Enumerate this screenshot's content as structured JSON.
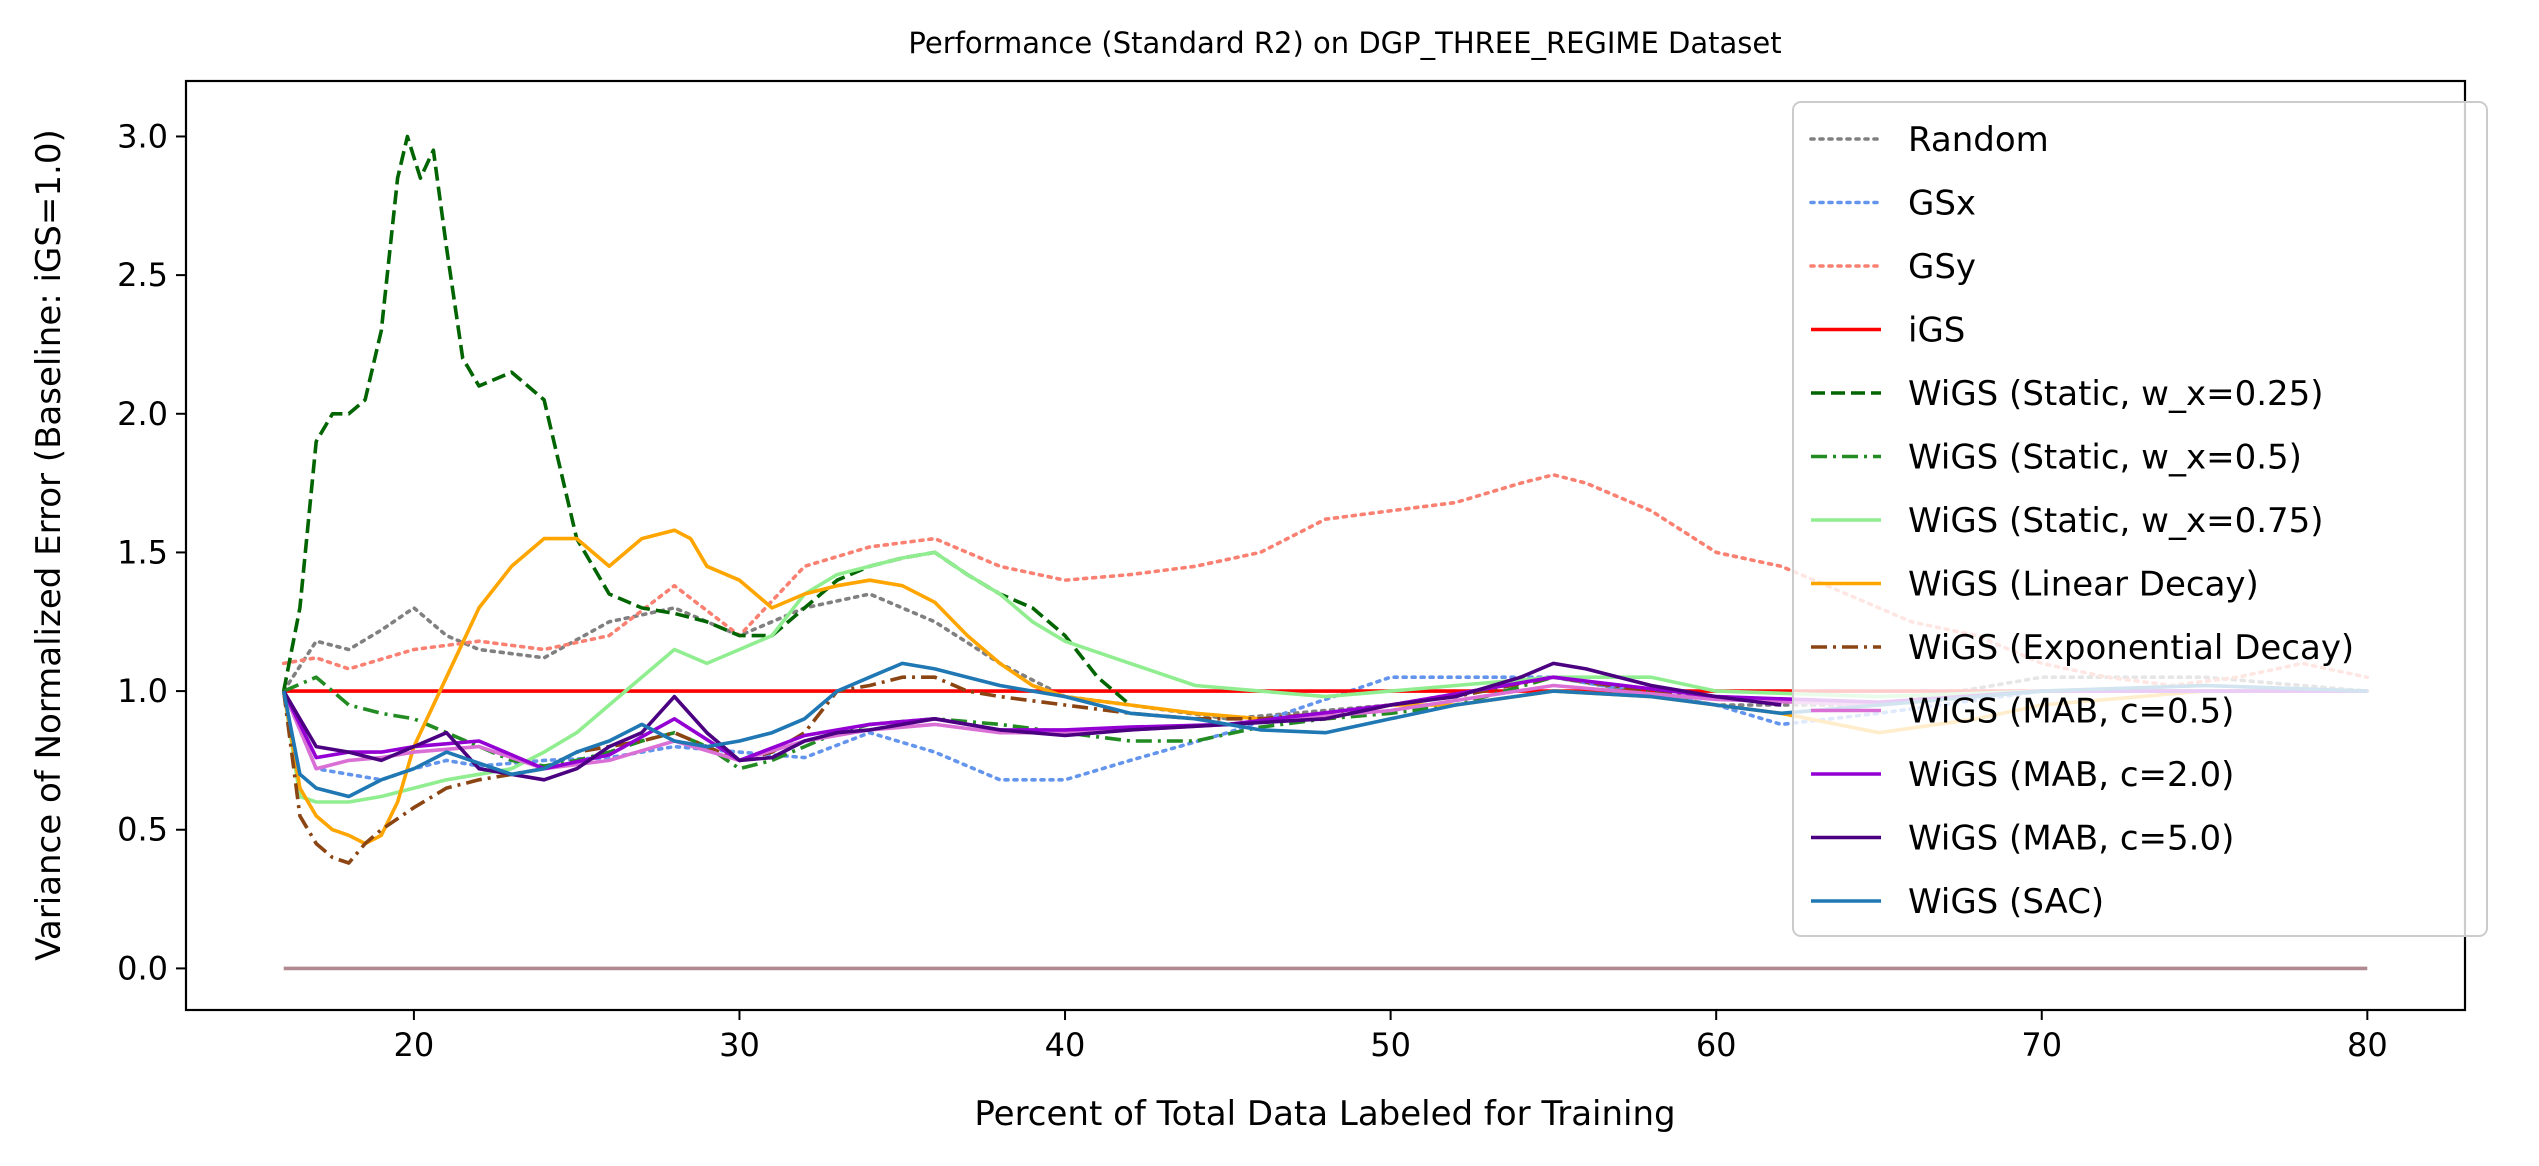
{
  "chart_data": {
    "type": "line",
    "title": "Performance (Standard R2) on DGP_THREE_REGIME Dataset",
    "xlabel": "Percent of Total Data Labeled for Training",
    "ylabel": "Variance of Normalized Error (Baseline: iGS=1.0)",
    "xlim": [
      13,
      83
    ],
    "ylim": [
      -0.15,
      3.2
    ],
    "xticks": [
      20,
      30,
      40,
      50,
      60,
      70,
      80
    ],
    "yticks": [
      0.0,
      0.5,
      1.0,
      1.5,
      2.0,
      2.5,
      3.0
    ],
    "grid": false,
    "legend_position": "top-right",
    "series": [
      {
        "name": "Random",
        "color": "#808080",
        "dash": "dotted",
        "x": [
          16,
          17,
          18,
          19,
          20,
          21,
          22,
          24,
          26,
          28,
          30,
          32,
          34,
          36,
          38,
          40,
          42,
          45,
          50,
          55,
          60,
          65,
          70,
          75,
          80
        ],
        "y": [
          1.0,
          1.18,
          1.15,
          1.22,
          1.3,
          1.2,
          1.15,
          1.12,
          1.25,
          1.3,
          1.2,
          1.3,
          1.35,
          1.25,
          1.1,
          0.98,
          0.95,
          0.9,
          0.95,
          1.05,
          0.95,
          0.95,
          1.05,
          1.05,
          1.0
        ]
      },
      {
        "name": "GSx",
        "color": "#6495ed",
        "dash": "dotted",
        "x": [
          16,
          17,
          18,
          19,
          20,
          21,
          22,
          24,
          26,
          28,
          30,
          32,
          34,
          36,
          38,
          40,
          42,
          45,
          50,
          55,
          60,
          62,
          65,
          70,
          75,
          80
        ],
        "y": [
          1.0,
          0.72,
          0.7,
          0.68,
          0.72,
          0.75,
          0.73,
          0.75,
          0.76,
          0.8,
          0.78,
          0.76,
          0.85,
          0.78,
          0.68,
          0.68,
          0.75,
          0.85,
          1.05,
          1.05,
          0.95,
          0.88,
          0.92,
          1.0,
          1.0,
          1.0
        ]
      },
      {
        "name": "GSy",
        "color": "#fa8072",
        "dash": "dotted",
        "x": [
          16,
          17,
          18,
          20,
          22,
          24,
          26,
          28,
          30,
          32,
          34,
          36,
          38,
          40,
          42,
          44,
          46,
          48,
          50,
          52,
          54,
          55,
          56,
          58,
          60,
          62,
          64,
          66,
          68,
          70,
          72,
          74,
          76,
          78,
          80
        ],
        "y": [
          1.1,
          1.12,
          1.08,
          1.15,
          1.18,
          1.15,
          1.2,
          1.38,
          1.2,
          1.45,
          1.52,
          1.55,
          1.45,
          1.4,
          1.42,
          1.45,
          1.5,
          1.62,
          1.65,
          1.68,
          1.75,
          1.78,
          1.75,
          1.65,
          1.5,
          1.45,
          1.35,
          1.25,
          1.2,
          1.1,
          1.05,
          1.02,
          1.05,
          1.1,
          1.05
        ]
      },
      {
        "name": "iGS",
        "color": "#ff0000",
        "dash": "solid",
        "x": [
          16,
          80
        ],
        "y": [
          1.0,
          1.0
        ]
      },
      {
        "name": "WiGS (Static, w_x=0.25)",
        "color": "#006400",
        "dash": "dashed",
        "x": [
          16,
          16.5,
          17,
          17.5,
          18,
          18.5,
          19,
          19.5,
          19.8,
          20.2,
          20.6,
          21,
          21.5,
          22,
          23,
          24,
          24.5,
          25,
          25.5,
          26,
          27,
          28,
          29,
          30,
          31,
          32,
          33,
          34,
          35,
          36,
          37,
          38,
          39,
          40,
          41,
          42
        ],
        "y": [
          1.0,
          1.3,
          1.9,
          2.0,
          2.0,
          2.05,
          2.3,
          2.85,
          3.0,
          2.85,
          2.95,
          2.6,
          2.2,
          2.1,
          2.15,
          2.05,
          1.8,
          1.55,
          1.45,
          1.35,
          1.3,
          1.28,
          1.25,
          1.2,
          1.2,
          1.3,
          1.4,
          1.45,
          1.48,
          1.5,
          1.42,
          1.35,
          1.3,
          1.2,
          1.05,
          0.95
        ]
      },
      {
        "name": "WiGS (Static, w_x=0.5)",
        "color": "#228b22",
        "dash": "dashdot",
        "x": [
          16,
          17,
          18,
          19,
          20,
          21,
          22,
          23,
          24,
          25,
          26,
          27,
          28,
          29,
          30,
          31,
          32,
          33,
          34,
          36,
          38,
          40,
          42,
          44,
          46,
          48,
          50,
          52,
          55,
          58,
          60
        ],
        "y": [
          1.0,
          1.05,
          0.95,
          0.92,
          0.9,
          0.85,
          0.8,
          0.75,
          0.73,
          0.75,
          0.78,
          0.82,
          0.85,
          0.8,
          0.72,
          0.75,
          0.8,
          0.85,
          0.88,
          0.9,
          0.88,
          0.85,
          0.82,
          0.82,
          0.87,
          0.9,
          0.92,
          0.95,
          1.05,
          1.0,
          0.98
        ]
      },
      {
        "name": "WiGS (Static, w_x=0.75)",
        "color": "#90ee90",
        "dash": "solid",
        "x": [
          16,
          16.5,
          17,
          18,
          19,
          20,
          21,
          22,
          23,
          24,
          25,
          26,
          27,
          28,
          29,
          30,
          31,
          32,
          33,
          34,
          35,
          36,
          37,
          38,
          39,
          40,
          42,
          44,
          46,
          48,
          50,
          52,
          55,
          58,
          60,
          65,
          70,
          75,
          80
        ],
        "y": [
          1.0,
          0.62,
          0.6,
          0.6,
          0.62,
          0.65,
          0.68,
          0.7,
          0.72,
          0.78,
          0.85,
          0.95,
          1.05,
          1.15,
          1.1,
          1.15,
          1.2,
          1.35,
          1.42,
          1.45,
          1.48,
          1.5,
          1.42,
          1.35,
          1.25,
          1.18,
          1.1,
          1.02,
          1.0,
          0.98,
          1.0,
          1.02,
          1.05,
          1.05,
          1.0,
          0.98,
          1.0,
          1.02,
          1.0
        ]
      },
      {
        "name": "WiGS (Linear Decay)",
        "color": "#ffa500",
        "dash": "solid",
        "x": [
          16,
          16.5,
          17,
          17.5,
          18,
          18.5,
          19,
          19.5,
          20,
          21,
          22,
          23,
          24,
          25,
          26,
          27,
          28,
          28.5,
          29,
          30,
          31,
          32,
          33,
          34,
          35,
          36,
          37,
          38,
          39,
          40,
          42,
          44,
          46,
          48,
          50,
          52,
          55,
          58,
          60,
          62,
          65,
          68,
          70,
          75,
          80
        ],
        "y": [
          1.0,
          0.65,
          0.55,
          0.5,
          0.48,
          0.45,
          0.48,
          0.6,
          0.8,
          1.05,
          1.3,
          1.45,
          1.55,
          1.55,
          1.45,
          1.55,
          1.58,
          1.55,
          1.45,
          1.4,
          1.3,
          1.35,
          1.38,
          1.4,
          1.38,
          1.32,
          1.2,
          1.1,
          1.02,
          0.98,
          0.95,
          0.92,
          0.9,
          0.9,
          0.95,
          0.95,
          1.0,
          0.98,
          0.95,
          0.92,
          0.85,
          0.9,
          0.95,
          1.0,
          1.0
        ]
      },
      {
        "name": "WiGS (Exponential Decay)",
        "color": "#8b4513",
        "dash": "dashdot",
        "x": [
          16,
          16.5,
          17,
          17.5,
          18,
          18.5,
          19,
          20,
          21,
          22,
          23,
          24,
          25,
          26,
          27,
          28,
          29,
          30,
          31,
          32,
          33,
          34,
          35,
          36,
          37,
          38,
          40,
          42,
          44,
          46,
          48,
          50,
          52,
          55,
          58,
          60,
          65,
          70,
          75,
          80
        ],
        "y": [
          1.0,
          0.55,
          0.45,
          0.4,
          0.38,
          0.45,
          0.5,
          0.58,
          0.65,
          0.68,
          0.7,
          0.72,
          0.78,
          0.8,
          0.82,
          0.85,
          0.8,
          0.75,
          0.78,
          0.85,
          1.0,
          1.02,
          1.05,
          1.05,
          1.0,
          0.98,
          0.95,
          0.92,
          0.9,
          0.9,
          0.92,
          0.95,
          0.98,
          1.05,
          1.0,
          0.98,
          0.95,
          1.0,
          1.0,
          1.0
        ]
      },
      {
        "name": "WiGS (MAB, c=0.5)",
        "color": "#da70d6",
        "dash": "solid",
        "x": [
          16,
          17,
          18,
          19,
          20,
          22,
          24,
          26,
          28,
          30,
          32,
          34,
          36,
          38,
          40,
          42,
          45,
          50,
          55,
          60,
          65,
          70,
          75,
          80
        ],
        "y": [
          1.0,
          0.72,
          0.75,
          0.76,
          0.78,
          0.8,
          0.72,
          0.75,
          0.82,
          0.75,
          0.82,
          0.86,
          0.88,
          0.85,
          0.85,
          0.86,
          0.88,
          0.93,
          1.02,
          0.97,
          0.95,
          1.0,
          1.0,
          1.0
        ]
      },
      {
        "name": "WiGS (MAB, c=2.0)",
        "color": "#9400d3",
        "dash": "solid",
        "x": [
          16,
          17,
          18,
          19,
          20,
          22,
          24,
          26,
          28,
          30,
          32,
          34,
          36,
          38,
          40,
          42,
          45,
          50,
          55,
          60,
          65,
          70,
          75,
          80
        ],
        "y": [
          1.0,
          0.76,
          0.78,
          0.78,
          0.8,
          0.82,
          0.72,
          0.77,
          0.9,
          0.75,
          0.84,
          0.88,
          0.9,
          0.86,
          0.86,
          0.87,
          0.88,
          0.95,
          1.05,
          0.98,
          0.96,
          1.0,
          1.0,
          1.0
        ]
      },
      {
        "name": "WiGS (MAB, c=5.0)",
        "color": "#4b0082",
        "dash": "solid",
        "x": [
          16,
          17,
          18,
          19,
          20,
          21,
          22,
          23,
          24,
          25,
          26,
          27,
          28,
          29,
          30,
          31,
          32,
          33,
          34,
          35,
          36,
          38,
          40,
          42,
          45,
          48,
          50,
          52,
          54,
          55,
          56,
          58,
          60,
          62
        ],
        "y": [
          1.0,
          0.8,
          0.78,
          0.75,
          0.8,
          0.85,
          0.72,
          0.7,
          0.68,
          0.72,
          0.8,
          0.85,
          0.98,
          0.85,
          0.75,
          0.76,
          0.82,
          0.85,
          0.86,
          0.88,
          0.9,
          0.86,
          0.84,
          0.86,
          0.88,
          0.9,
          0.95,
          0.98,
          1.05,
          1.1,
          1.08,
          1.02,
          0.98,
          0.95
        ]
      },
      {
        "name": "WiGS (SAC)",
        "color": "#1f77b4",
        "dash": "solid",
        "x": [
          16,
          16.5,
          17,
          18,
          19,
          20,
          21,
          22,
          23,
          24,
          25,
          26,
          27,
          28,
          29,
          30,
          31,
          32,
          33,
          34,
          35,
          36,
          37,
          38,
          39,
          40,
          42,
          44,
          46,
          48,
          50,
          52,
          55,
          58,
          60,
          62,
          65,
          70,
          75,
          80
        ],
        "y": [
          1.0,
          0.7,
          0.65,
          0.62,
          0.68,
          0.72,
          0.78,
          0.74,
          0.7,
          0.72,
          0.78,
          0.82,
          0.88,
          0.82,
          0.8,
          0.82,
          0.85,
          0.9,
          1.0,
          1.05,
          1.1,
          1.08,
          1.05,
          1.02,
          1.0,
          0.98,
          0.92,
          0.9,
          0.86,
          0.85,
          0.9,
          0.95,
          1.0,
          0.98,
          0.95,
          0.92,
          0.95,
          1.0,
          1.02,
          1.0
        ]
      },
      {
        "name": "",
        "color": "#b08a90",
        "dash": "solid",
        "legend": false,
        "x": [
          16,
          80
        ],
        "y": [
          0.0,
          0.0
        ]
      }
    ]
  }
}
